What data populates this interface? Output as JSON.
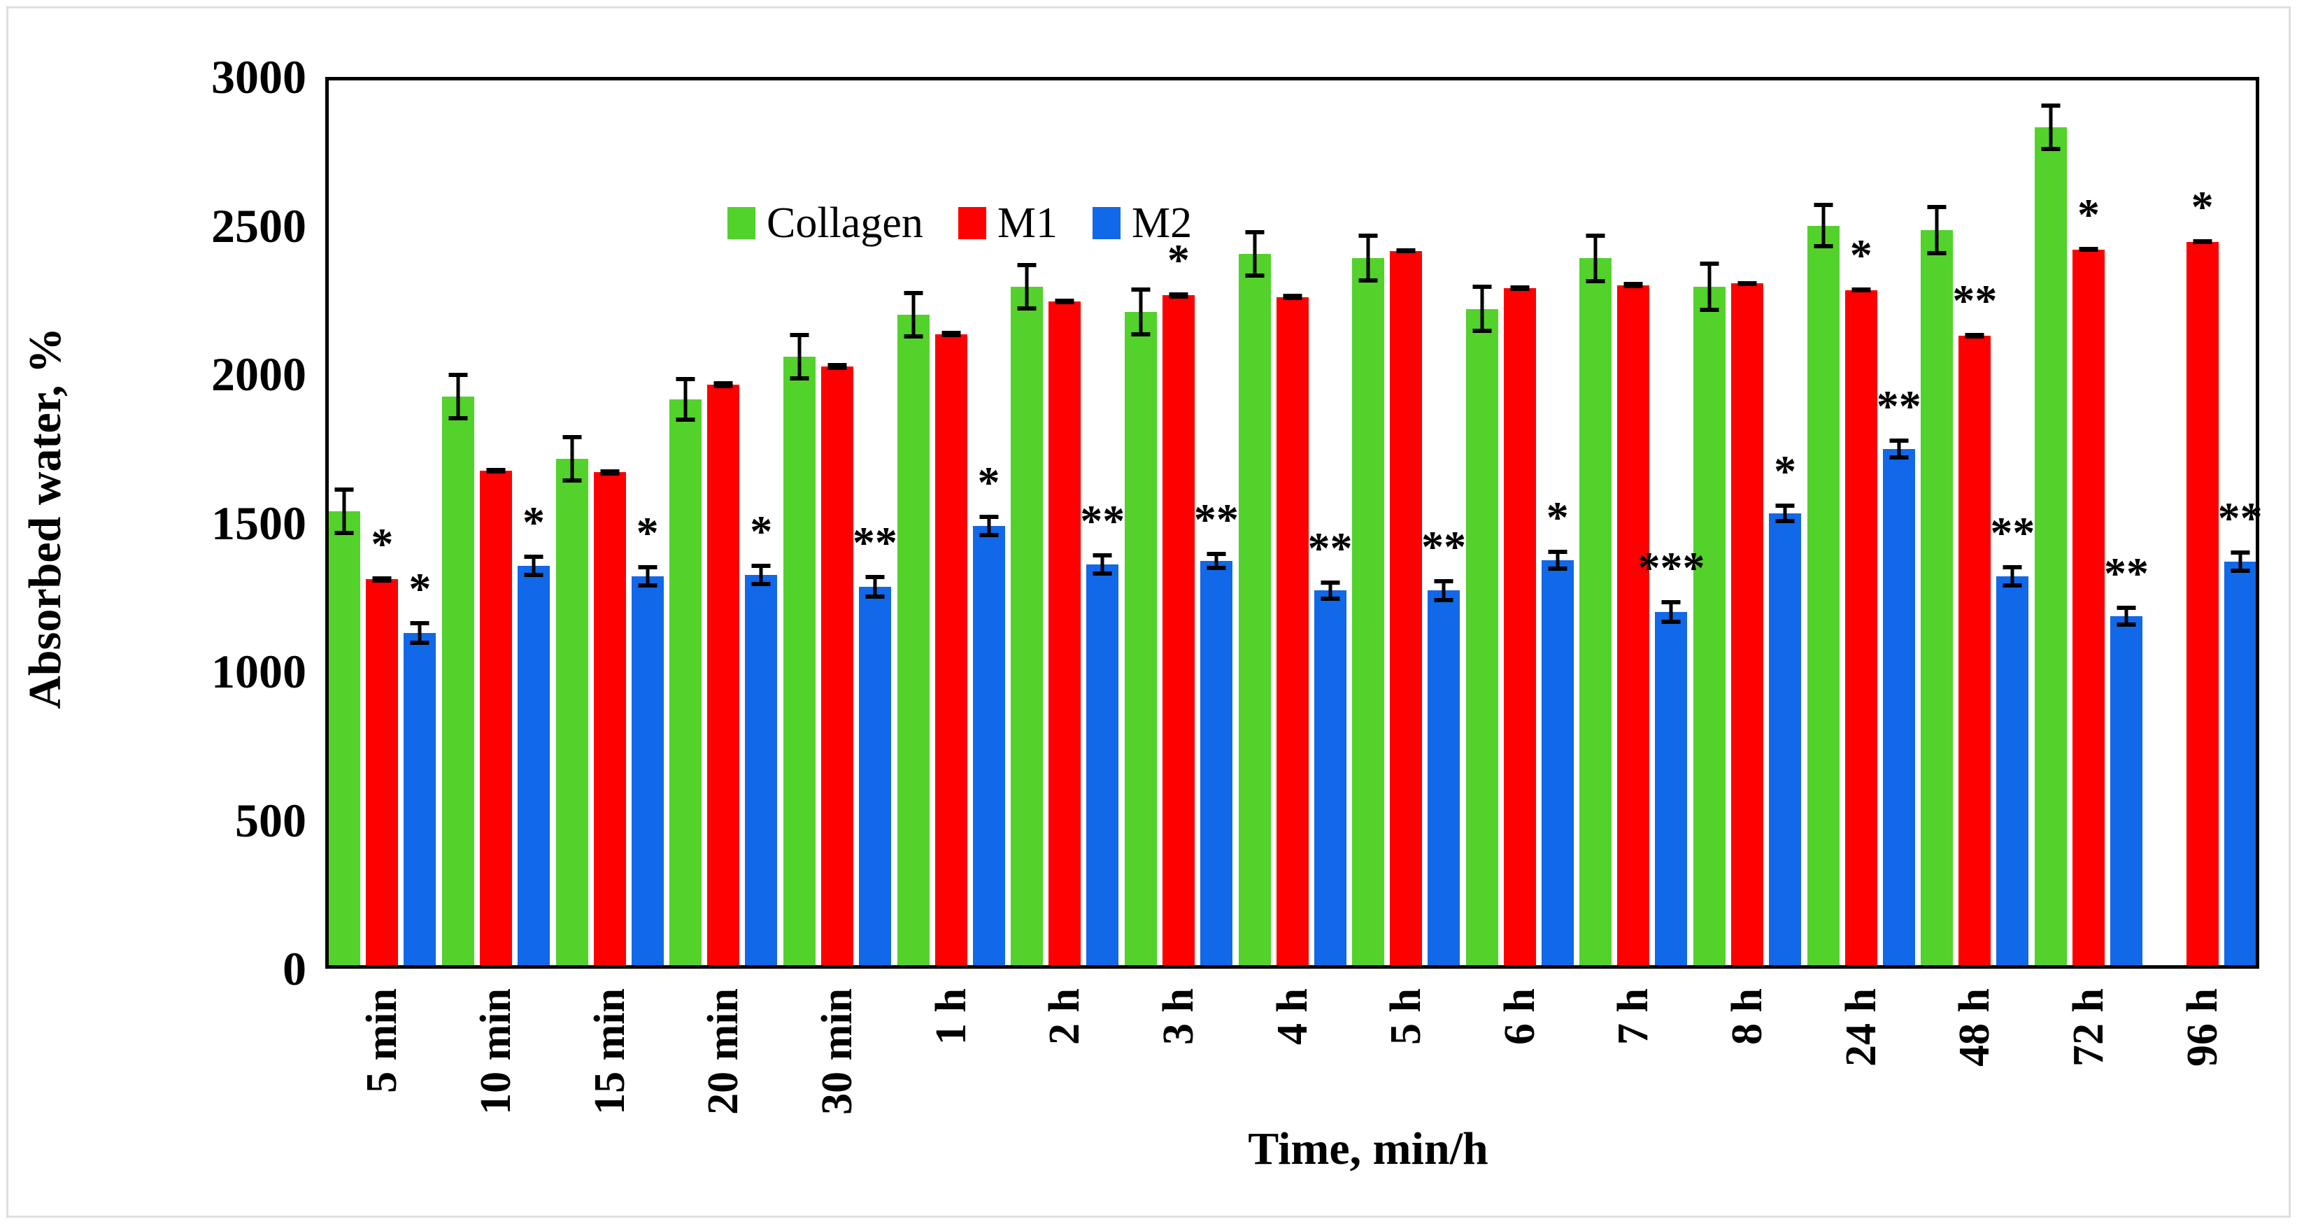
{
  "figure": {
    "background": "#ffffff",
    "border_color": "#dedede",
    "axis_color": "#000000"
  },
  "chart_data": {
    "type": "bar",
    "title": "",
    "xlabel": "Time, min/h",
    "ylabel": "Absorbed water, %",
    "ylim": [
      0,
      3000
    ],
    "yticks": [
      0,
      500,
      1000,
      1500,
      2000,
      2500,
      3000
    ],
    "grid": false,
    "legend_position": "top-left-inside",
    "error_bars": "symmetric, caps, black",
    "significance_note": "asterisks shown above error bars",
    "categories": [
      "5 min",
      "10 min",
      "15 min",
      "20 min",
      "30 min",
      "1 h",
      "2 h",
      "3 h",
      "4 h",
      "5 h",
      "6 h",
      "7 h",
      "8 h",
      "24 h",
      "48 h",
      "72 h",
      "96 h"
    ],
    "series": [
      {
        "name": "Collagen",
        "color": "#52d22b",
        "values": [
          1540,
          1925,
          1715,
          1915,
          2060,
          2200,
          2295,
          2210,
          2405,
          2390,
          2220,
          2390,
          2295,
          2500,
          2485,
          2830,
          null
        ],
        "errors": [
          80,
          80,
          80,
          75,
          80,
          80,
          80,
          82,
          80,
          82,
          81,
          84,
          85,
          76,
          84,
          80,
          null
        ],
        "sig": [
          "",
          "",
          "",
          "",
          "",
          "",
          "",
          "",
          "",
          "",
          "",
          "",
          "",
          "",
          "",
          "",
          ""
        ]
      },
      {
        "name": "M1",
        "color": "#ff0000",
        "values": [
          1310,
          1675,
          1670,
          1965,
          2025,
          2135,
          2245,
          2265,
          2260,
          2415,
          2290,
          2300,
          2305,
          2283,
          2130,
          2420,
          2445
        ],
        "errors": [
          10,
          10,
          10,
          12,
          12,
          10,
          10,
          10,
          10,
          8,
          10,
          10,
          8,
          8,
          10,
          8,
          8
        ],
        "sig": [
          "*",
          "",
          "",
          "",
          "",
          "",
          "",
          "*",
          "",
          "",
          "",
          "",
          "",
          "*",
          "**",
          "*",
          "*"
        ]
      },
      {
        "name": "M2",
        "color": "#1168e8",
        "values": [
          1130,
          1355,
          1320,
          1325,
          1285,
          1490,
          1360,
          1372,
          1272,
          1272,
          1375,
          1200,
          1532,
          1748,
          1320,
          1186,
          1370
        ],
        "errors": [
          40,
          38,
          38,
          37,
          40,
          38,
          38,
          30,
          35,
          38,
          35,
          40,
          33,
          36,
          38,
          35,
          38
        ],
        "sig": [
          "*",
          "*",
          "*",
          "*",
          "**",
          "*",
          "**",
          "**",
          "**",
          "**",
          "*",
          "***",
          "*",
          "**",
          "**",
          "**",
          "**"
        ]
      }
    ]
  }
}
